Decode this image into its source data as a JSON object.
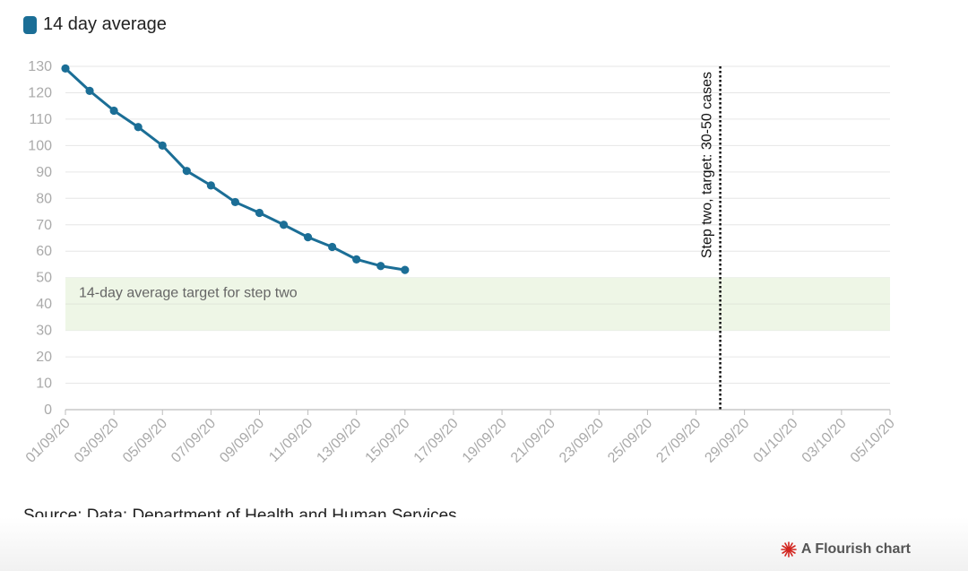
{
  "legend": {
    "label": "14 day average",
    "color": "#1b6e96"
  },
  "source": "Source: Data: Department of Health and Human Services",
  "branding": {
    "label": "A Flourish chart",
    "icon": "flourish-logo-icon",
    "icon_color": "#d2251f"
  },
  "chart_data": {
    "type": "line",
    "series": [
      {
        "name": "14 day average",
        "color": "#1b6e96",
        "x": [
          "01/09/20",
          "02/09/20",
          "03/09/20",
          "04/09/20",
          "05/09/20",
          "06/09/20",
          "07/09/20",
          "08/09/20",
          "09/09/20",
          "10/09/20",
          "11/09/20",
          "12/09/20",
          "13/09/20",
          "14/09/20",
          "15/09/20"
        ],
        "values": [
          129.2,
          120.7,
          113.2,
          107.0,
          100.0,
          90.4,
          84.9,
          78.6,
          74.5,
          70.0,
          65.3,
          61.6,
          56.9,
          54.4,
          52.9
        ]
      }
    ],
    "x_tick_labels": [
      "01/09/20",
      "03/09/20",
      "05/09/20",
      "07/09/20",
      "09/09/20",
      "11/09/20",
      "13/09/20",
      "15/09/20",
      "17/09/20",
      "19/09/20",
      "21/09/20",
      "23/09/20",
      "25/09/20",
      "27/09/20",
      "29/09/20",
      "01/10/20",
      "03/10/20",
      "05/10/20"
    ],
    "xlim": [
      "01/09/20",
      "05/10/20"
    ],
    "ylim": [
      0,
      130
    ],
    "y_ticks": [
      0,
      10,
      20,
      30,
      40,
      50,
      60,
      70,
      80,
      90,
      100,
      110,
      120,
      130
    ],
    "grid": true,
    "legend_position": "top-left",
    "target_band": {
      "y_min": 30,
      "y_max": 50,
      "label": "14-day average target for step two",
      "color": "#eef6e6"
    },
    "reference_line": {
      "x": "28/09/20",
      "label": "Step two, target: 30-50 cases",
      "style": "dotted"
    }
  }
}
